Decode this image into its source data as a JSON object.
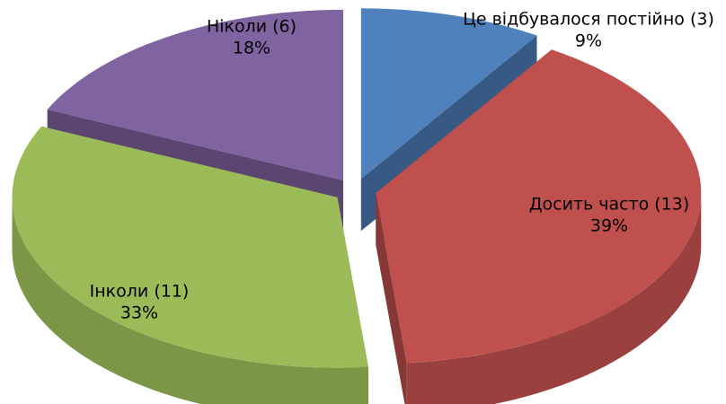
{
  "chart_data": {
    "type": "pie",
    "three_d": true,
    "exploded": true,
    "categories": [
      "Це відбувалося постійно (3)",
      "Досить часто (13)",
      "Інколи (11)",
      "Ніколи (6)"
    ],
    "values": [
      9,
      39,
      33,
      18
    ],
    "value_labels": [
      "9%",
      "39%",
      "33%",
      "18%"
    ],
    "colors": [
      "#4f81bd",
      "#c0504d",
      "#9bbb59",
      "#8064a2"
    ]
  }
}
